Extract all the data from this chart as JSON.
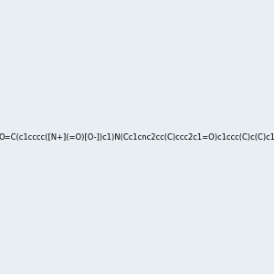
{
  "smiles": "O=C(c1cccc([N+](=O)[O-])c1)N(Cc1cnc2cc(C)ccc2c1=O)c1ccc(C)c(C)c1",
  "title": "",
  "background_color": "#e8eef2",
  "bond_color": "#2d6b5e",
  "atom_colors": {
    "N": "#0000ff",
    "O": "#ff0000",
    "C": "#2d6b5e",
    "H": "#2d6b5e"
  },
  "figsize": [
    3.0,
    3.0
  ],
  "dpi": 100
}
